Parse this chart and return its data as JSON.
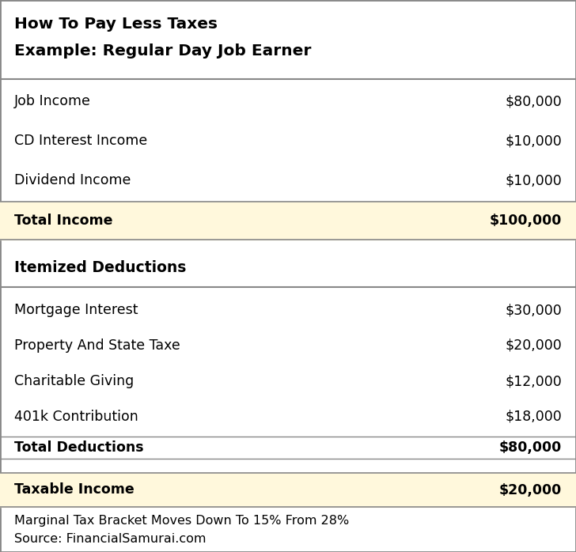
{
  "title_line1": "How To Pay Less Taxes",
  "title_line2": "Example: Regular Day Job Earner",
  "income_rows": [
    {
      "label": "Job Income",
      "value": "$80,000"
    },
    {
      "label": "CD Interest Income",
      "value": "$10,000"
    },
    {
      "label": "Dividend Income",
      "value": "$10,000"
    }
  ],
  "total_income": {
    "label": "Total Income",
    "value": "$100,000"
  },
  "deductions_header": "Itemized Deductions",
  "deduction_rows": [
    {
      "label": "Mortgage Interest",
      "value": "$30,000"
    },
    {
      "label": "Property And State Taxe",
      "value": "$20,000"
    },
    {
      "label": "Charitable Giving",
      "value": "$12,000"
    },
    {
      "label": "401k Contribution",
      "value": "$18,000"
    }
  ],
  "total_deductions": {
    "label": "Total Deductions",
    "value": "$80,000"
  },
  "taxable_income": {
    "label": "Taxable Income",
    "value": "$20,000"
  },
  "footer_line1": "Marginal Tax Bracket Moves Down To 15% From 28%",
  "footer_line2": "Source: FinancialSamurai.com",
  "highlight_color": "#FFF8DC",
  "border_color": "#888888",
  "bg_color": "#FFFFFF",
  "text_color": "#000000",
  "title_fontsize": 14.5,
  "header_fontsize": 13.5,
  "row_fontsize": 12.5,
  "footer_fontsize": 11.5
}
